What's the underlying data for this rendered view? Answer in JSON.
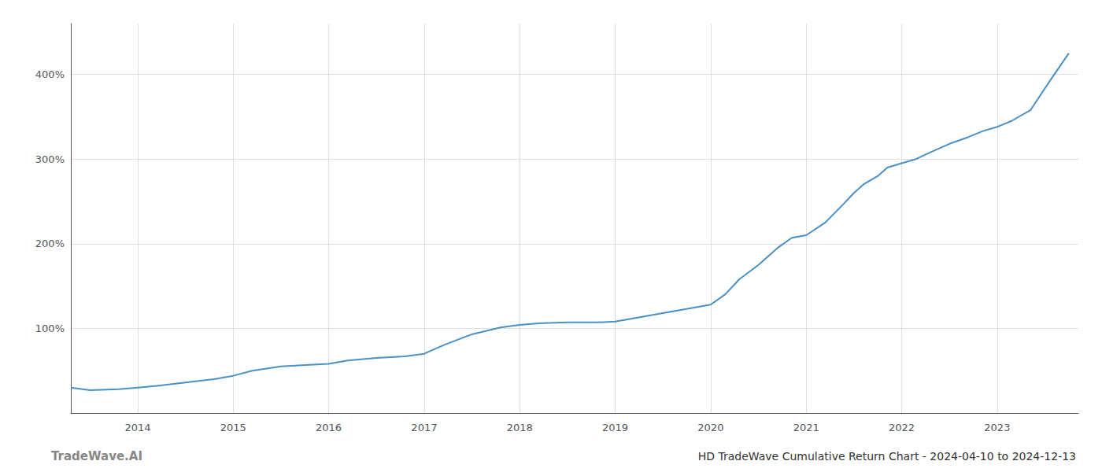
{
  "chart_data": {
    "type": "line",
    "title": "HD TradeWave Cumulative Return Chart - 2024-04-10 to 2024-12-13",
    "annotations": [
      "TradeWave.AI"
    ],
    "x": [
      2013.3,
      2013.5,
      2013.8,
      2014.0,
      2014.2,
      2014.5,
      2014.8,
      2015.0,
      2015.2,
      2015.5,
      2015.8,
      2016.0,
      2016.2,
      2016.5,
      2016.8,
      2017.0,
      2017.2,
      2017.5,
      2017.8,
      2018.0,
      2018.2,
      2018.5,
      2018.8,
      2019.0,
      2019.2,
      2019.5,
      2019.7,
      2019.85,
      2020.0,
      2020.15,
      2020.3,
      2020.5,
      2020.7,
      2020.85,
      2021.0,
      2021.2,
      2021.4,
      2021.5,
      2021.6,
      2021.75,
      2021.85,
      2022.0,
      2022.15,
      2022.3,
      2022.5,
      2022.7,
      2022.85,
      2023.0,
      2023.15,
      2023.35,
      2023.55,
      2023.75
    ],
    "values": [
      30,
      27,
      28,
      30,
      32,
      36,
      40,
      44,
      50,
      55,
      57,
      58,
      62,
      65,
      67,
      70,
      80,
      93,
      101,
      104,
      106,
      107,
      107,
      108,
      112,
      118,
      122,
      125,
      128,
      140,
      158,
      175,
      195,
      207,
      210,
      225,
      248,
      260,
      270,
      280,
      290,
      295,
      300,
      308,
      318,
      326,
      333,
      338,
      345,
      358,
      392,
      425
    ],
    "color": "#4a90c4",
    "xlim": [
      2013.3,
      2023.85
    ],
    "xticks": [
      2014,
      2015,
      2016,
      2017,
      2018,
      2019,
      2020,
      2021,
      2022,
      2023
    ],
    "ylim": [
      0,
      460
    ],
    "yticks": [
      {
        "value": 0,
        "label": null
      },
      {
        "value": 100,
        "label": "100%"
      },
      {
        "value": 200,
        "label": "200%"
      },
      {
        "value": 300,
        "label": "300%"
      },
      {
        "value": 400,
        "label": "400%"
      }
    ],
    "grid": true
  }
}
